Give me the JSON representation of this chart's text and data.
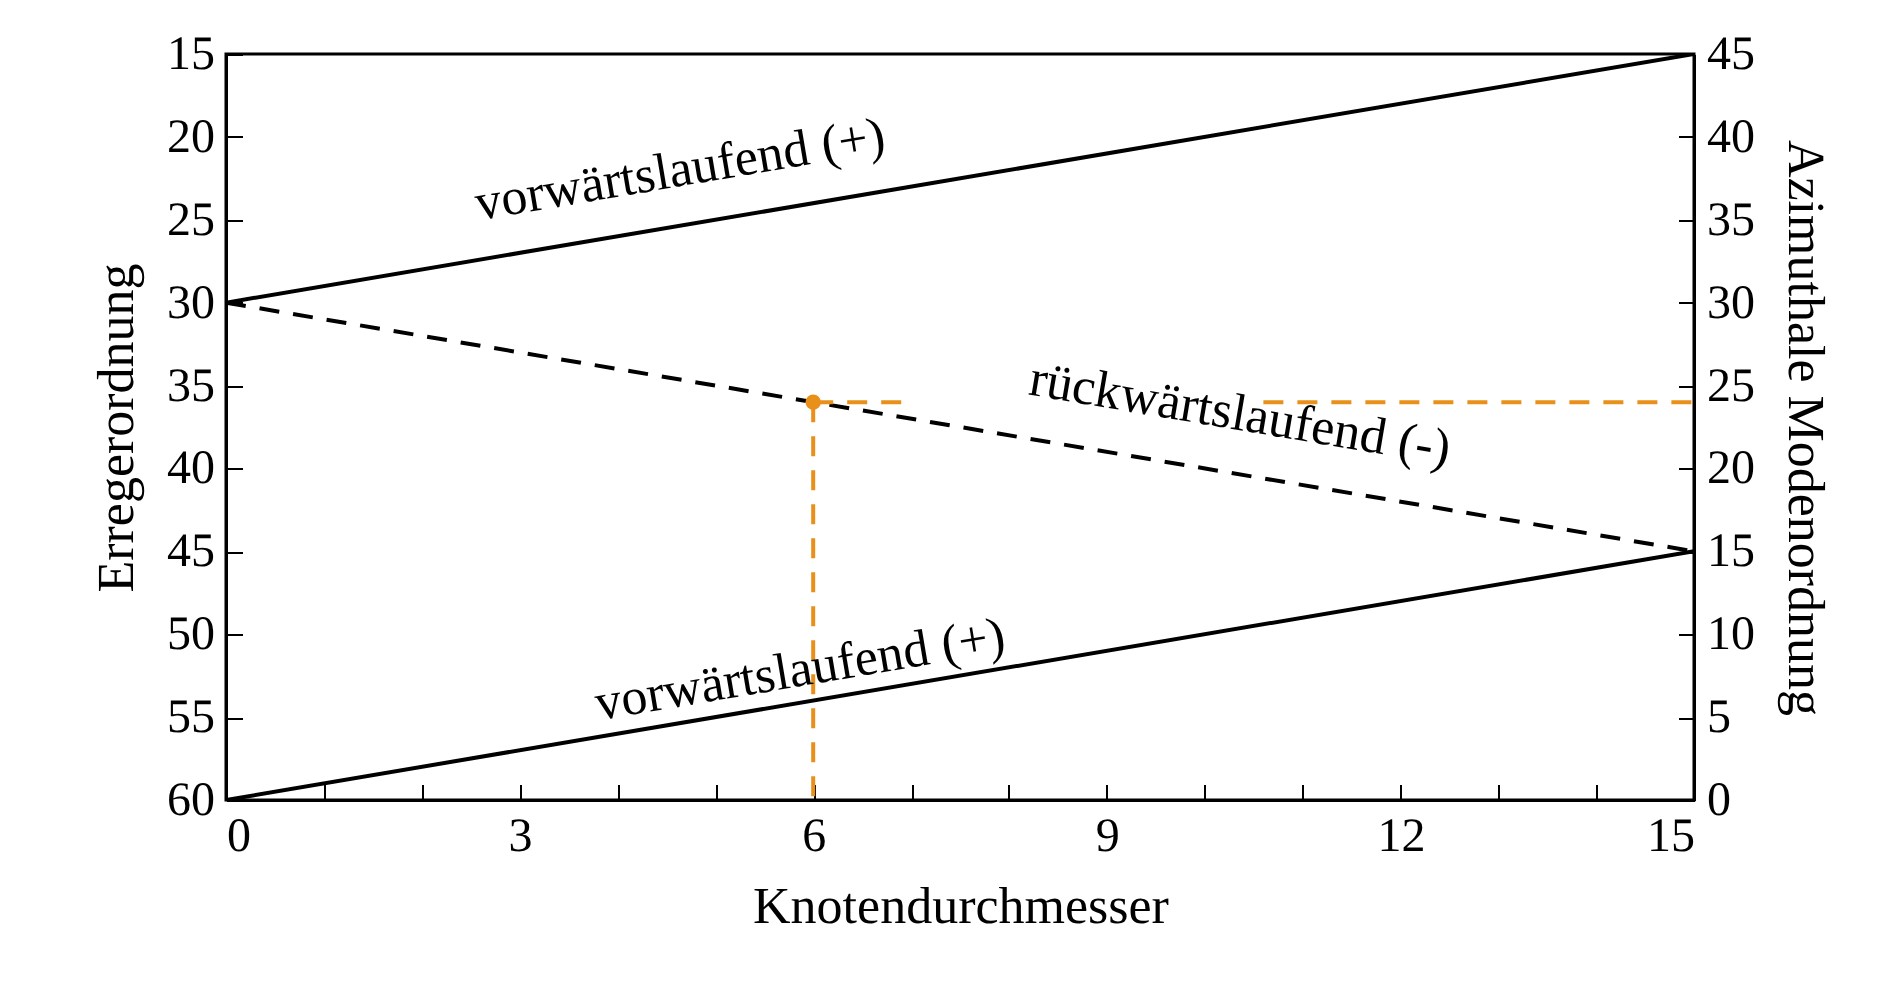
{
  "chart_data": {
    "type": "line",
    "xlabel": "Knotendurchmesser",
    "ylabel": "Erregerordnung",
    "y2label": "Azimuthale Modenordnung",
    "xlim": [
      0,
      15
    ],
    "xticks": [
      0,
      {
        "value": 1,
        "label": null
      },
      {
        "value": 2,
        "label": null
      },
      3,
      {
        "value": 4,
        "label": null
      },
      {
        "value": 5,
        "label": null
      },
      6,
      {
        "value": 7,
        "label": null
      },
      {
        "value": 8,
        "label": null
      },
      9,
      {
        "value": 10,
        "label": null
      },
      {
        "value": 11,
        "label": null
      },
      12,
      {
        "value": 13,
        "label": null
      },
      {
        "value": 14,
        "label": null
      },
      15
    ],
    "ylim": [
      60,
      15
    ],
    "yticks": [
      15,
      20,
      25,
      30,
      35,
      40,
      45,
      50,
      55,
      60
    ],
    "y2lim": [
      0,
      45
    ],
    "y2ticks": [
      0,
      5,
      10,
      15,
      20,
      25,
      30,
      35,
      40,
      45
    ],
    "series": [
      {
        "color": "#000000",
        "line_style": "solid",
        "x": [
          0,
          15
        ],
        "values": [
          30,
          15
        ]
      },
      {
        "color": "#000000",
        "line_style": "dashed",
        "x": [
          0,
          15
        ],
        "values": [
          30,
          45
        ]
      },
      {
        "color": "#000000",
        "line_style": "solid",
        "x": [
          0,
          15
        ],
        "values": [
          60,
          45
        ]
      },
      {
        "color": "#e8901a",
        "line_style": "dashed",
        "x": [
          6,
          6
        ],
        "values": [
          36,
          60
        ]
      },
      {
        "color": "#e8901a",
        "line_style": "dashed",
        "axis": "y2",
        "x": [
          6,
          7.0,
          8.8,
          10.6,
          15
        ],
        "values": [
          24,
          24,
          null,
          24,
          24
        ]
      },
      {
        "type": "scatter",
        "color": "#e8901a",
        "marker": "circle",
        "x": [
          6
        ],
        "values": [
          36
        ]
      }
    ],
    "annotations": [
      "vorwärtslaufend (+)",
      "rückwärtslaufend (-)",
      "vorwärtslaufend (+)"
    ],
    "grid": false
  }
}
